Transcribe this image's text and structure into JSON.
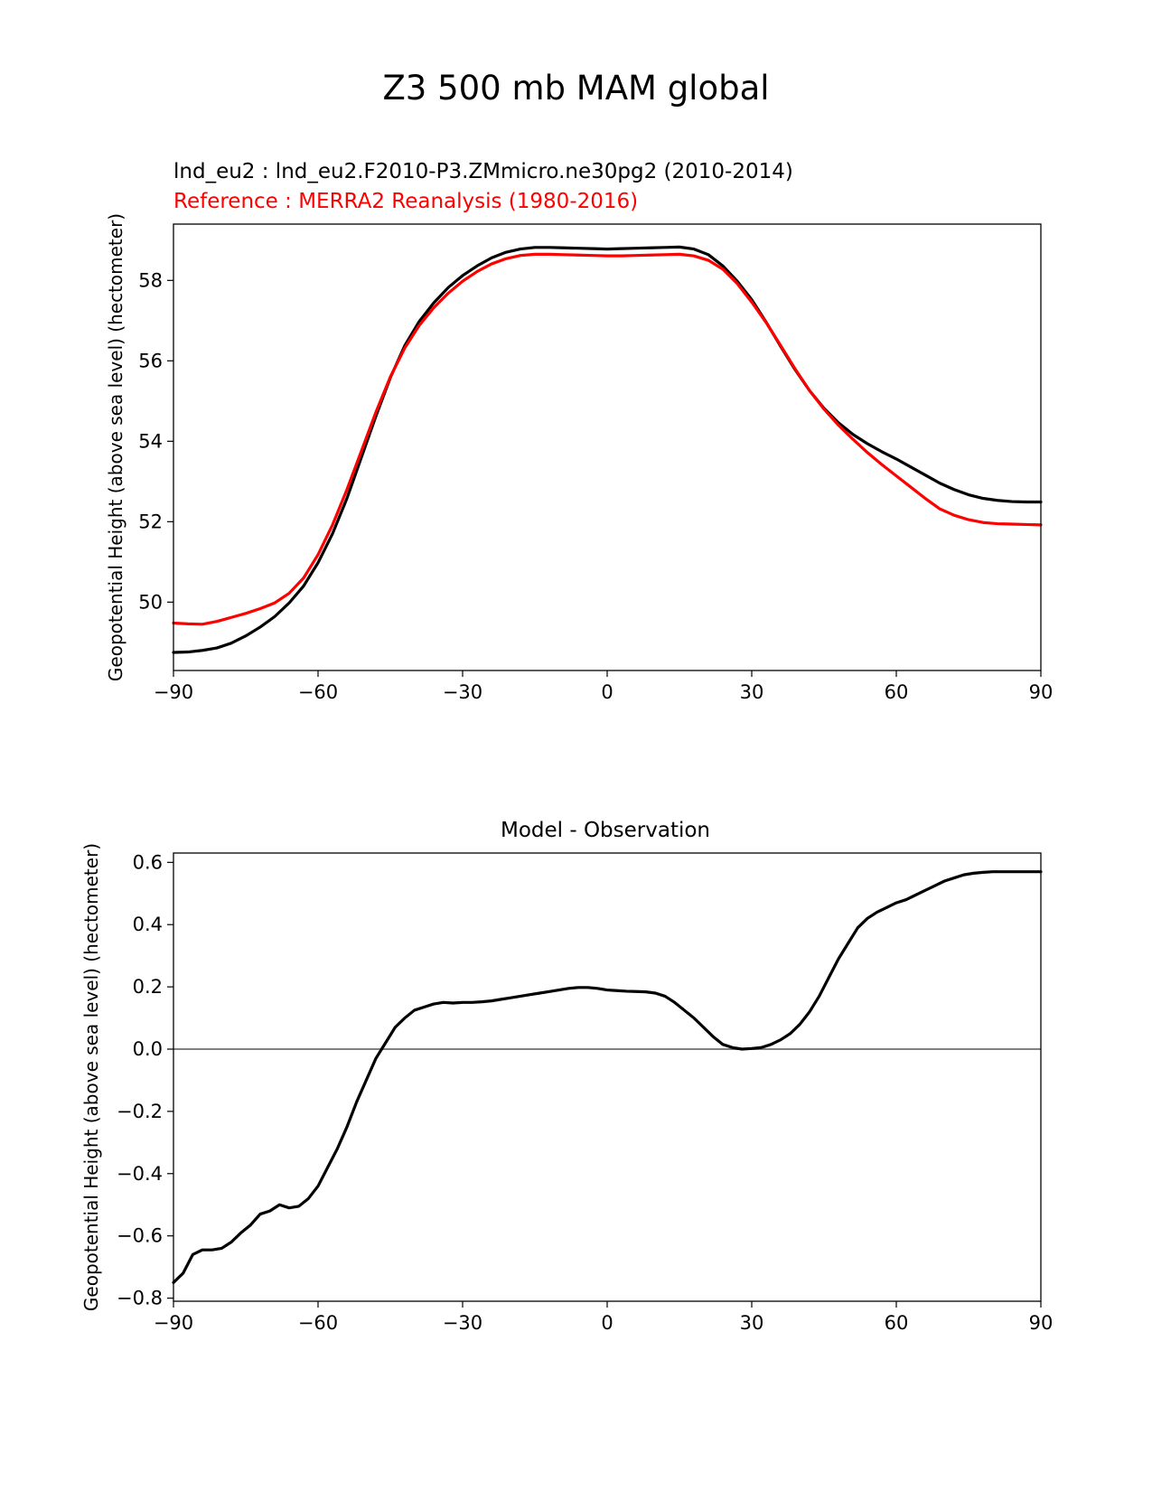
{
  "suptitle": "Z3 500 mb MAM global",
  "colors": {
    "test": "#000000",
    "reference": "#ff0000",
    "zero_line": "#808080"
  },
  "chart_data": [
    {
      "type": "line",
      "test_label": "lnd_eu2 : lnd_eu2.F2010-P3.ZMmicro.ne30pg2 (2010-2014)",
      "reference_label": "Reference : MERRA2 Reanalysis (1980-2016)",
      "xlabel": "",
      "ylabel": "Geopotential Height (above sea level) (hectometer)",
      "xlim": [
        -90,
        90
      ],
      "ylim": [
        48.3,
        59.4
      ],
      "xticks": [
        -90,
        -60,
        -30,
        0,
        30,
        60,
        90
      ],
      "xtick_labels": [
        "−90",
        "−60",
        "−30",
        "0",
        "30",
        "60",
        "90"
      ],
      "yticks": [
        50,
        52,
        54,
        56,
        58
      ],
      "ytick_labels": [
        "50",
        "52",
        "54",
        "56",
        "58"
      ],
      "series": [
        {
          "name": "test",
          "color": "#000000",
          "x": [
            -90,
            -87,
            -84,
            -81,
            -78,
            -75,
            -72,
            -69,
            -66,
            -63,
            -60,
            -57,
            -54,
            -51,
            -48,
            -45,
            -42,
            -39,
            -36,
            -33,
            -30,
            -27,
            -24,
            -21,
            -18,
            -15,
            -12,
            -9,
            -6,
            -3,
            0,
            3,
            6,
            9,
            12,
            15,
            18,
            21,
            24,
            27,
            30,
            33,
            36,
            39,
            42,
            45,
            48,
            51,
            54,
            57,
            60,
            63,
            66,
            69,
            72,
            75,
            78,
            81,
            84,
            87,
            90
          ],
          "values": [
            48.75,
            48.76,
            48.8,
            48.86,
            48.98,
            49.16,
            49.38,
            49.64,
            49.98,
            50.4,
            50.98,
            51.7,
            52.58,
            53.6,
            54.62,
            55.58,
            56.38,
            56.98,
            57.44,
            57.82,
            58.12,
            58.36,
            58.56,
            58.7,
            58.78,
            58.82,
            58.82,
            58.81,
            58.8,
            58.79,
            58.78,
            58.79,
            58.8,
            58.81,
            58.82,
            58.83,
            58.78,
            58.64,
            58.36,
            57.98,
            57.52,
            56.96,
            56.36,
            55.78,
            55.26,
            54.82,
            54.46,
            54.17,
            53.94,
            53.74,
            53.56,
            53.36,
            53.16,
            52.96,
            52.8,
            52.67,
            52.58,
            52.53,
            52.5,
            52.49,
            52.49
          ]
        },
        {
          "name": "reference",
          "color": "#ff0000",
          "x": [
            -90,
            -87,
            -84,
            -81,
            -78,
            -75,
            -72,
            -69,
            -66,
            -63,
            -60,
            -57,
            -54,
            -51,
            -48,
            -45,
            -42,
            -39,
            -36,
            -33,
            -30,
            -27,
            -24,
            -21,
            -18,
            -15,
            -12,
            -9,
            -6,
            -3,
            0,
            3,
            6,
            9,
            12,
            15,
            18,
            21,
            24,
            27,
            30,
            33,
            36,
            39,
            42,
            45,
            48,
            51,
            54,
            57,
            60,
            63,
            66,
            69,
            72,
            75,
            78,
            81,
            84,
            87,
            90
          ],
          "values": [
            49.48,
            49.46,
            49.45,
            49.52,
            49.62,
            49.72,
            49.84,
            49.98,
            50.22,
            50.6,
            51.18,
            51.92,
            52.8,
            53.76,
            54.72,
            55.6,
            56.32,
            56.88,
            57.32,
            57.68,
            57.98,
            58.22,
            58.41,
            58.54,
            58.62,
            58.65,
            58.65,
            58.64,
            58.63,
            58.62,
            58.61,
            58.61,
            58.62,
            58.63,
            58.64,
            58.65,
            58.61,
            58.5,
            58.28,
            57.92,
            57.46,
            56.95,
            56.38,
            55.8,
            55.26,
            54.8,
            54.4,
            54.05,
            53.72,
            53.42,
            53.14,
            52.86,
            52.58,
            52.32,
            52.16,
            52.05,
            51.98,
            51.95,
            51.94,
            51.93,
            51.92
          ]
        }
      ]
    },
    {
      "type": "line",
      "title": "Model - Observation",
      "xlabel": "",
      "ylabel": "Geopotential Height (above sea level) (hectometer)",
      "xlim": [
        -90,
        90
      ],
      "ylim": [
        -0.81,
        0.63
      ],
      "xticks": [
        -90,
        -60,
        -30,
        0,
        30,
        60,
        90
      ],
      "xtick_labels": [
        "−90",
        "−60",
        "−30",
        "0",
        "30",
        "60",
        "90"
      ],
      "yticks": [
        -0.8,
        -0.6,
        -0.4,
        -0.2,
        0.0,
        0.2,
        0.4,
        0.6
      ],
      "ytick_labels": [
        "−0.8",
        "−0.6",
        "−0.4",
        "−0.2",
        "0.0",
        "0.2",
        "0.4",
        "0.6"
      ],
      "zero_line": 0,
      "series": [
        {
          "name": "difference",
          "color": "#000000",
          "x": [
            -90,
            -88,
            -86,
            -84,
            -82,
            -80,
            -78,
            -76,
            -74,
            -72,
            -70,
            -68,
            -66,
            -64,
            -62,
            -60,
            -58,
            -56,
            -54,
            -52,
            -50,
            -48,
            -46,
            -44,
            -42,
            -40,
            -38,
            -36,
            -34,
            -32,
            -30,
            -28,
            -26,
            -24,
            -22,
            -20,
            -18,
            -16,
            -14,
            -12,
            -10,
            -8,
            -6,
            -4,
            -2,
            0,
            2,
            4,
            6,
            8,
            10,
            12,
            14,
            16,
            18,
            20,
            22,
            24,
            26,
            28,
            30,
            32,
            34,
            36,
            38,
            40,
            42,
            44,
            46,
            48,
            50,
            52,
            54,
            56,
            58,
            60,
            62,
            64,
            66,
            68,
            70,
            72,
            74,
            76,
            78,
            80,
            82,
            84,
            86,
            88,
            90
          ],
          "values": [
            -0.75,
            -0.72,
            -0.66,
            -0.645,
            -0.645,
            -0.64,
            -0.62,
            -0.59,
            -0.565,
            -0.53,
            -0.52,
            -0.5,
            -0.51,
            -0.505,
            -0.48,
            -0.44,
            -0.38,
            -0.32,
            -0.25,
            -0.17,
            -0.1,
            -0.03,
            0.02,
            0.07,
            0.1,
            0.125,
            0.135,
            0.145,
            0.15,
            0.148,
            0.15,
            0.15,
            0.152,
            0.155,
            0.16,
            0.165,
            0.17,
            0.175,
            0.18,
            0.185,
            0.19,
            0.195,
            0.198,
            0.198,
            0.195,
            0.19,
            0.188,
            0.186,
            0.185,
            0.184,
            0.18,
            0.17,
            0.15,
            0.125,
            0.1,
            0.07,
            0.04,
            0.015,
            0.005,
            0.0,
            0.002,
            0.005,
            0.015,
            0.03,
            0.05,
            0.08,
            0.12,
            0.17,
            0.23,
            0.29,
            0.34,
            0.39,
            0.42,
            0.44,
            0.455,
            0.47,
            0.48,
            0.495,
            0.51,
            0.525,
            0.54,
            0.55,
            0.56,
            0.565,
            0.568,
            0.57,
            0.57,
            0.57,
            0.57,
            0.57,
            0.57
          ]
        }
      ]
    }
  ]
}
